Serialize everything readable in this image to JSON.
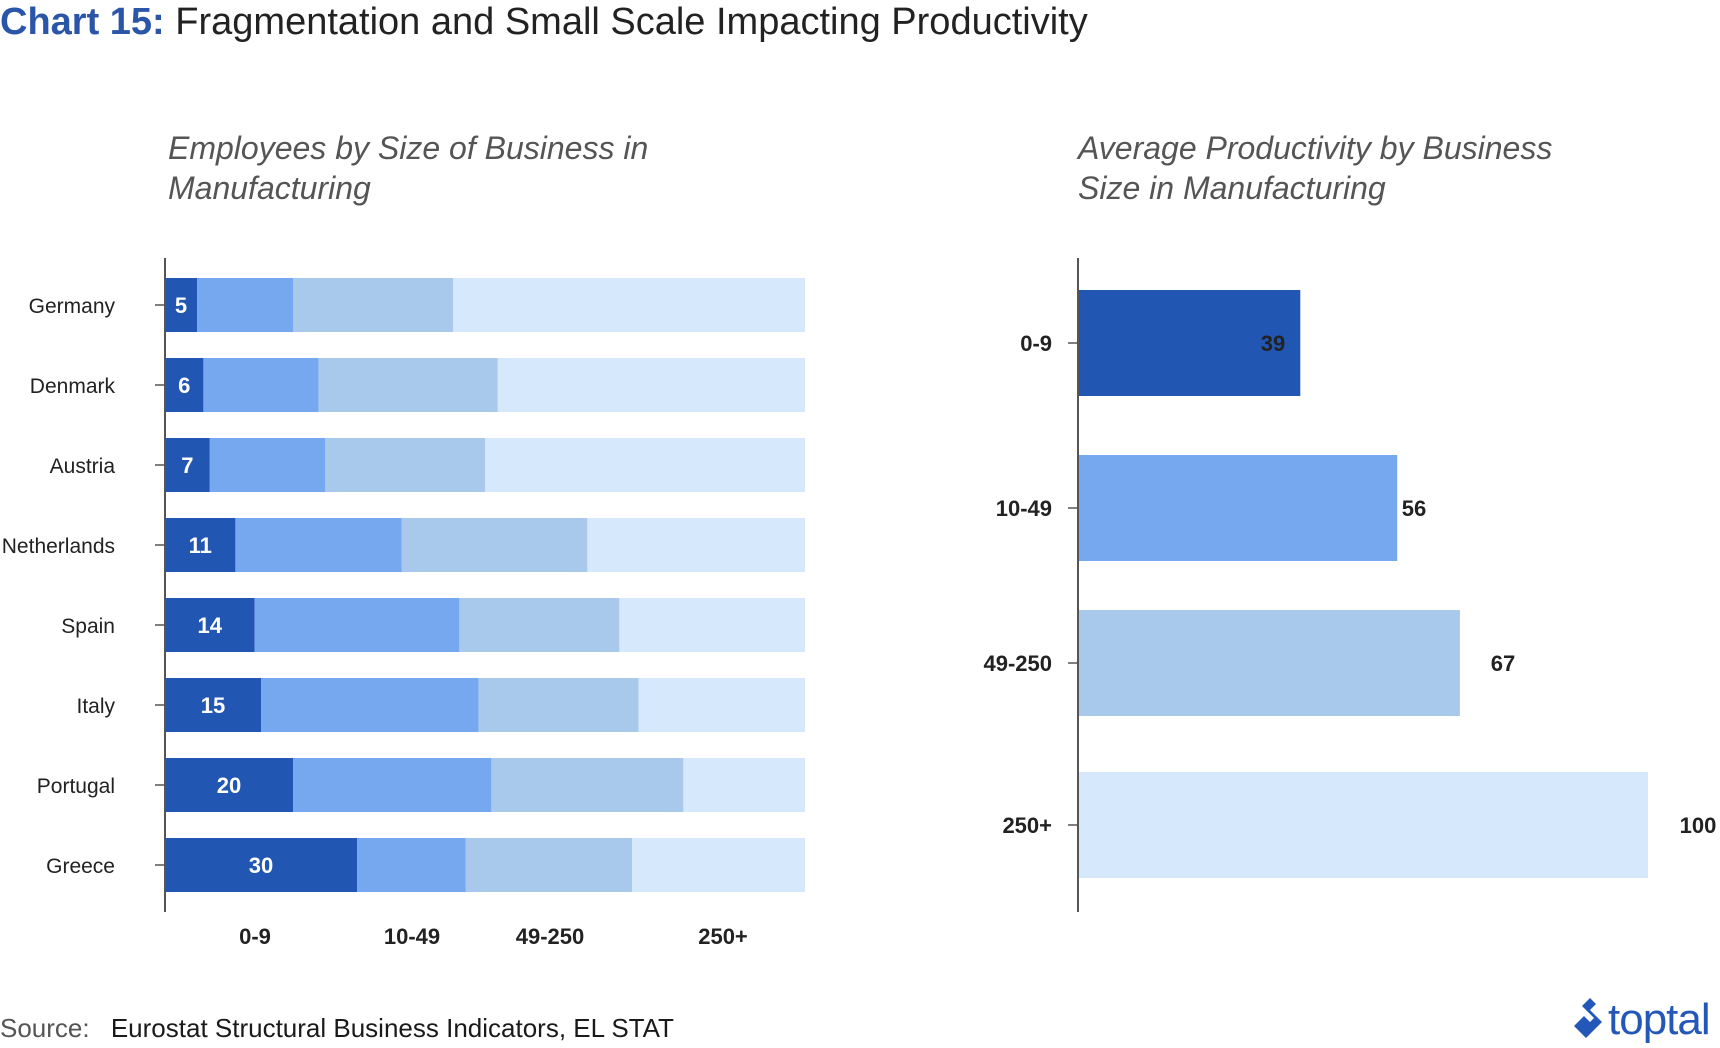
{
  "header": {
    "label": "Chart 15:",
    "title": "Fragmentation and Small Scale Impacting Productivity"
  },
  "colors": {
    "accent": "#2a55a8",
    "size_0_9": "#2156b2",
    "size_10_49": "#76a8f0",
    "size_49_250": "#a9c9ec",
    "size_250_plus": "#d6e8fb"
  },
  "chart_data": [
    {
      "type": "bar",
      "orientation": "horizontal",
      "stacked": "100%",
      "title": "Employees by Size of Business in Manufacturing",
      "categories": [
        "Germany",
        "Denmark",
        "Austria",
        "Netherlands",
        "Spain",
        "Italy",
        "Portugal",
        "Greece"
      ],
      "legend_position": "bottom",
      "series": [
        {
          "name": "0-9",
          "values": [
            5,
            6,
            7,
            11,
            14,
            15,
            20,
            30
          ],
          "labeled": true
        },
        {
          "name": "10-49",
          "values": [
            15,
            18,
            18,
            26,
            32,
            34,
            31,
            17
          ],
          "labeled": false
        },
        {
          "name": "49-250",
          "values": [
            25,
            28,
            25,
            29,
            25,
            25,
            30,
            26
          ],
          "labeled": false
        },
        {
          "name": "250+",
          "values": [
            55,
            48,
            50,
            34,
            29,
            26,
            19,
            27
          ],
          "labeled": false
        }
      ]
    },
    {
      "type": "bar",
      "orientation": "horizontal",
      "title": "Average Productivity by Business Size in Manufacturing",
      "categories": [
        "0-9",
        "10-49",
        "49-250",
        "250+"
      ],
      "values": [
        39,
        56,
        67,
        100
      ],
      "xlim": [
        0,
        100
      ]
    }
  ],
  "footer": {
    "source_label": "Source:",
    "source_text": "Eurostat Structural Business Indicators, EL STAT"
  },
  "logo": {
    "text": "toptal"
  }
}
